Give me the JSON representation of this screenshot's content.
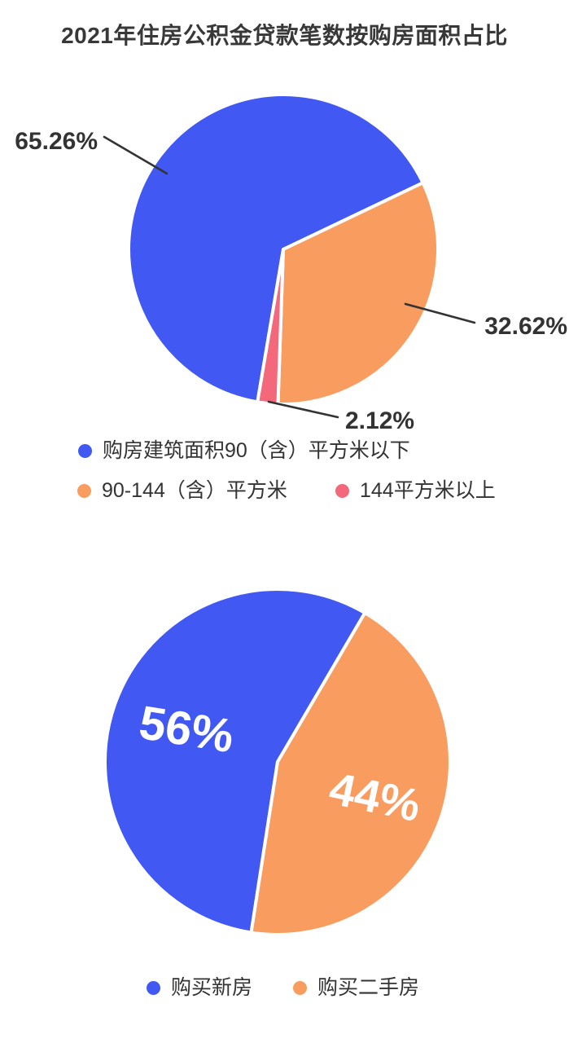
{
  "title": "2021年住房公积金贷款笔数按购房面积占比",
  "colors": {
    "blue": "#4159F2",
    "orange": "#F99C5F",
    "red": "#F3697B",
    "text_dark": "#333333",
    "leader_line": "#333333",
    "inside_label": "#FFFFFF",
    "slice_divider": "#FFFFFF",
    "background": "#FFFFFF"
  },
  "chart_data": [
    {
      "type": "pie",
      "title": "2021年住房公积金贷款笔数按购房面积占比",
      "values_are": "percent",
      "start_angle_deg": 189.6,
      "label_position": "outside-leader-lines",
      "legend_position": "below",
      "slices": [
        {
          "label": "购房建筑面积90（含）平方米以下",
          "value": 65.26,
          "display": "65.26%",
          "color": "#4159F2"
        },
        {
          "label": "90-144（含）平方米",
          "value": 32.62,
          "display": "32.62%",
          "color": "#F99C5F"
        },
        {
          "label": "144平方米以上",
          "value": 2.12,
          "display": "2.12%",
          "color": "#F3697B"
        }
      ]
    },
    {
      "type": "pie",
      "title": "",
      "values_are": "percent",
      "start_angle_deg": 188.8,
      "label_position": "inside",
      "legend_position": "below",
      "slices": [
        {
          "label": "购买新房",
          "value": 56,
          "display": "56%",
          "color": "#4159F2"
        },
        {
          "label": "购买二手房",
          "value": 44,
          "display": "44%",
          "color": "#F99C5F"
        }
      ]
    }
  ]
}
